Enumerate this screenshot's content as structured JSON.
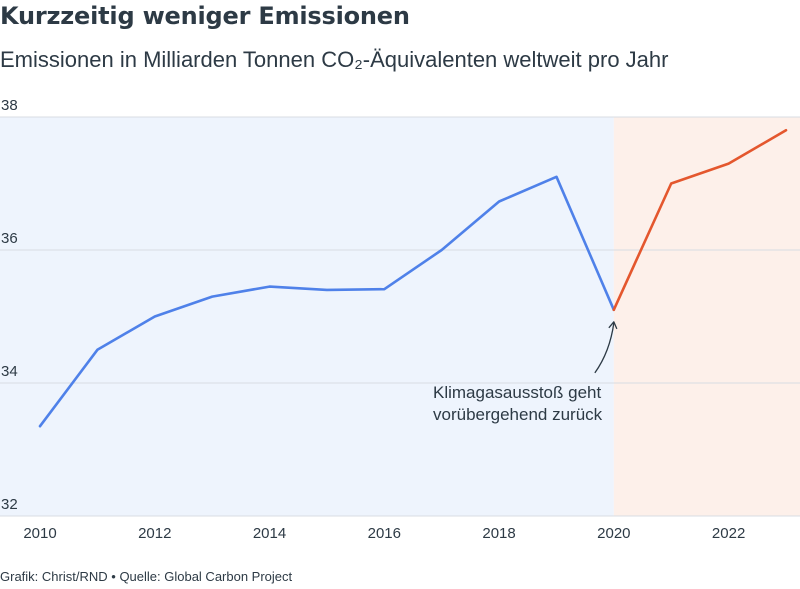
{
  "title": "Kurzzeitig weniger Emissionen",
  "subtitle": "Emissionen in Milliarden Tonnen CO₂-Äquivalenten weltweit pro Jahr",
  "footer": {
    "credit": "Grafik: Christ/RND",
    "separator": "•",
    "source": "Quelle: Global Carbon Project"
  },
  "colors": {
    "historic_line": "#4f81e9",
    "recent_line": "#e4572e",
    "historic_band": "#eef4fd",
    "recent_band": "#fdf0ea",
    "grid": "#d8dde3",
    "text": "#2d3a45"
  },
  "chart_data": {
    "type": "line",
    "ylim": [
      32,
      38
    ],
    "xlim": [
      2010,
      2023
    ],
    "yticks": [
      "32",
      "34",
      "36",
      "38"
    ],
    "xticks": [
      "2010",
      "2012",
      "2014",
      "2016",
      "2018",
      "2020",
      "2022"
    ],
    "grid": "horizontal",
    "series": [
      {
        "segment": "historic",
        "x": [
          2010,
          2011,
          2012,
          2013,
          2014,
          2015,
          2016,
          2017,
          2018,
          2019,
          2020
        ],
        "values": [
          33.35,
          34.5,
          35.0,
          35.3,
          35.45,
          35.4,
          35.41,
          36.0,
          36.73,
          37.1,
          35.1
        ]
      },
      {
        "segment": "recent",
        "x": [
          2020,
          2021,
          2022,
          2023
        ],
        "values": [
          35.1,
          37.0,
          37.3,
          37.8
        ]
      }
    ],
    "bands": [
      {
        "segment": "historic",
        "from": 2010,
        "to": 2020
      },
      {
        "segment": "recent",
        "from": 2020,
        "to": 2023
      }
    ],
    "annotation": {
      "lines": [
        "Klimagasausstoß geht",
        "vorübergehend zurück"
      ],
      "target_x": 2020,
      "target_y": 35.1
    }
  }
}
